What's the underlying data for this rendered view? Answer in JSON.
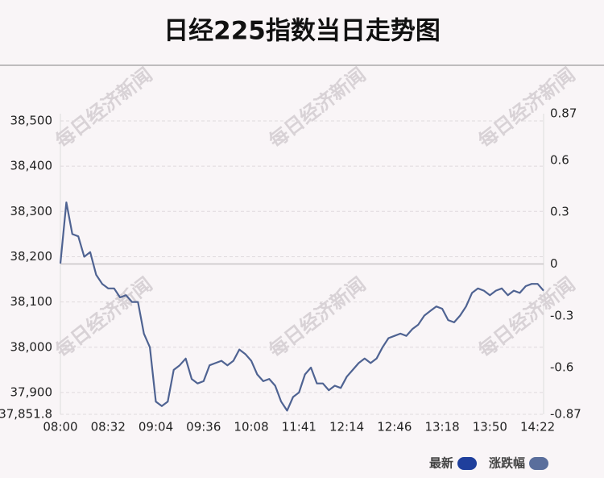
{
  "chart_data": {
    "type": "line",
    "title": "日经225指数当日走势图",
    "watermark": "每日经济新闻",
    "categories": [
      "08:00",
      null,
      null,
      null,
      null,
      null,
      null,
      null,
      "08:32",
      null,
      null,
      null,
      null,
      null,
      null,
      null,
      "09:04",
      null,
      null,
      null,
      null,
      null,
      null,
      null,
      "09:36",
      null,
      null,
      null,
      null,
      null,
      null,
      null,
      "10:08",
      null,
      null,
      null,
      null,
      null,
      null,
      null,
      "11:41",
      null,
      null,
      null,
      null,
      null,
      null,
      null,
      "12:14",
      null,
      null,
      null,
      null,
      null,
      null,
      null,
      "12:46",
      null,
      null,
      null,
      null,
      null,
      null,
      null,
      "13:18",
      null,
      null,
      null,
      null,
      null,
      null,
      null,
      "13:50",
      null,
      null,
      null,
      null,
      null,
      null,
      null,
      "14:22",
      null
    ],
    "series": [
      {
        "name": "最新",
        "color": "#4f6392",
        "legend_color": "#1f3f9c",
        "values": [
          38185,
          38320,
          38250,
          38245,
          38200,
          38210,
          38160,
          38140,
          38130,
          38130,
          38110,
          38115,
          38100,
          38100,
          38030,
          38000,
          37880,
          37870,
          37880,
          37950,
          37960,
          37975,
          37930,
          37920,
          37925,
          37960,
          37965,
          37970,
          37960,
          37970,
          37995,
          37985,
          37970,
          37940,
          37925,
          37930,
          37915,
          37880,
          37860,
          37890,
          37900,
          37940,
          37955,
          37920,
          37920,
          37905,
          37915,
          37910,
          37935,
          37950,
          37965,
          37975,
          37965,
          37975,
          38000,
          38020,
          38025,
          38030,
          38025,
          38040,
          38050,
          38070,
          38080,
          38090,
          38085,
          38060,
          38055,
          38070,
          38090,
          38120,
          38130,
          38125,
          38115,
          38125,
          38130,
          38115,
          38125,
          38120,
          38135,
          38140,
          38140,
          38125
        ]
      }
    ],
    "legend": [
      {
        "name": "最新",
        "color": "#1f3f9c"
      },
      {
        "name": "涨跌幅",
        "color": "#5a6e9c"
      }
    ],
    "ylim": [
      37851.8,
      38516.0
    ],
    "yticks": [
      {
        "value": 37851.8,
        "label": "37,851.8"
      },
      {
        "value": 37900,
        "label": "37,900"
      },
      {
        "value": 38000,
        "label": "38,000"
      },
      {
        "value": 38100,
        "label": "38,100"
      },
      {
        "value": 38200,
        "label": "38,200"
      },
      {
        "value": 38300,
        "label": "38,300"
      },
      {
        "value": 38400,
        "label": "38,400"
      },
      {
        "value": 38500,
        "label": "38,500"
      }
    ],
    "y2lim": [
      -0.87,
      0.87
    ],
    "y2ticks": [
      -0.87,
      -0.6,
      -0.3,
      0,
      0.3,
      0.6,
      0.87
    ],
    "grid": true
  }
}
